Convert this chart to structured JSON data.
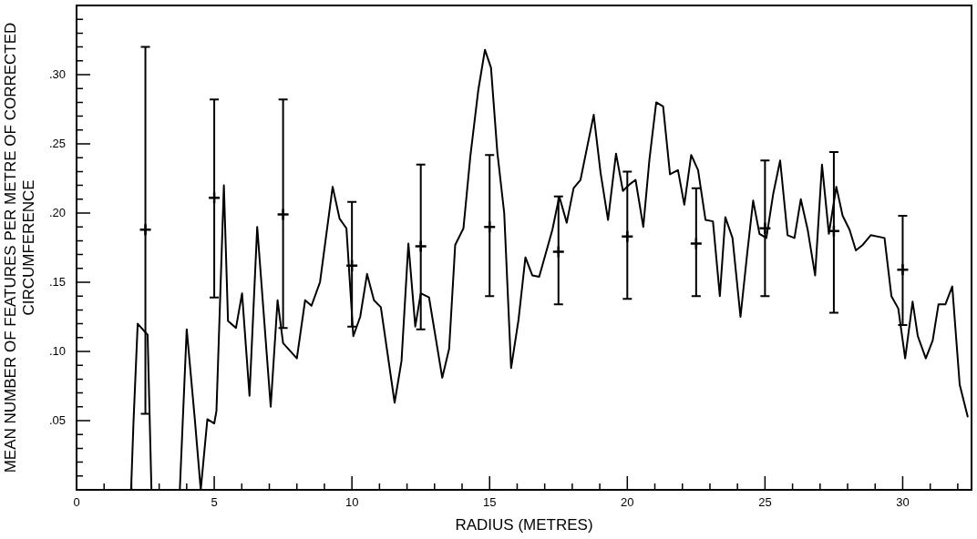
{
  "chart_data": {
    "type": "line",
    "xlabel": "RADIUS (METRES)",
    "ylabel": "MEAN NUMBER OF FEATURES PER METRE OF CORRECTED CIRCUMFERENCE",
    "xlim": [
      0,
      32.5
    ],
    "ylim": [
      0,
      0.35
    ],
    "xticks": [
      0,
      {
        "value": 1,
        "label": null
      },
      {
        "value": 2,
        "label": null
      },
      {
        "value": 3,
        "label": null
      },
      {
        "value": 4,
        "label": null
      },
      5,
      {
        "value": 6,
        "label": null
      },
      {
        "value": 7,
        "label": null
      },
      {
        "value": 8,
        "label": null
      },
      {
        "value": 9,
        "label": null
      },
      10,
      {
        "value": 11,
        "label": null
      },
      {
        "value": 12,
        "label": null
      },
      {
        "value": 13,
        "label": null
      },
      {
        "value": 14,
        "label": null
      },
      15,
      {
        "value": 16,
        "label": null
      },
      {
        "value": 17,
        "label": null
      },
      {
        "value": 18,
        "label": null
      },
      {
        "value": 19,
        "label": null
      },
      20,
      {
        "value": 21,
        "label": null
      },
      {
        "value": 22,
        "label": null
      },
      {
        "value": 23,
        "label": null
      },
      {
        "value": 24,
        "label": null
      },
      25,
      {
        "value": 26,
        "label": null
      },
      {
        "value": 27,
        "label": null
      },
      {
        "value": 28,
        "label": null
      },
      {
        "value": 29,
        "label": null
      },
      30,
      {
        "value": 31,
        "label": null
      },
      {
        "value": 32,
        "label": null
      }
    ],
    "yticks": [
      {
        "value": 0.01,
        "label": null
      },
      {
        "value": 0.02,
        "label": null
      },
      {
        "value": 0.03,
        "label": null
      },
      {
        "value": 0.04,
        "label": null
      },
      {
        "value": 0.05,
        "label": ".05"
      },
      {
        "value": 0.06,
        "label": null
      },
      {
        "value": 0.07,
        "label": null
      },
      {
        "value": 0.08,
        "label": null
      },
      {
        "value": 0.09,
        "label": null
      },
      {
        "value": 0.1,
        "label": ".10"
      },
      {
        "value": 0.11,
        "label": null
      },
      {
        "value": 0.12,
        "label": null
      },
      {
        "value": 0.13,
        "label": null
      },
      {
        "value": 0.14,
        "label": null
      },
      {
        "value": 0.15,
        "label": ".15"
      },
      {
        "value": 0.16,
        "label": null
      },
      {
        "value": 0.17,
        "label": null
      },
      {
        "value": 0.18,
        "label": null
      },
      {
        "value": 0.19,
        "label": null
      },
      {
        "value": 0.2,
        "label": ".20"
      },
      {
        "value": 0.21,
        "label": null
      },
      {
        "value": 0.22,
        "label": null
      },
      {
        "value": 0.23,
        "label": null
      },
      {
        "value": 0.24,
        "label": null
      },
      {
        "value": 0.25,
        "label": ".25"
      },
      {
        "value": 0.26,
        "label": null
      },
      {
        "value": 0.27,
        "label": null
      },
      {
        "value": 0.28,
        "label": null
      },
      {
        "value": 0.29,
        "label": null
      },
      {
        "value": 0.3,
        "label": ".30"
      },
      {
        "value": 0.31,
        "label": null
      },
      {
        "value": 0.32,
        "label": null
      },
      {
        "value": 0.33,
        "label": null
      },
      {
        "value": 0.34,
        "label": null
      }
    ],
    "grid": false,
    "legend": false,
    "series": [
      {
        "type": "line",
        "color": "#000000",
        "marker": "none",
        "x": [
          0,
          1.98,
          2.07,
          2.22,
          2.58,
          2.72,
          3.75,
          4.0,
          4.29,
          4.51,
          4.75,
          5.0,
          5.08,
          5.35,
          5.5,
          5.79,
          6.01,
          6.28,
          6.56,
          7.05,
          7.3,
          7.5,
          8.0,
          8.3,
          8.53,
          8.84,
          9.3,
          9.55,
          9.8,
          10.05,
          10.3,
          10.55,
          10.8,
          11.05,
          11.55,
          11.8,
          12.05,
          12.3,
          12.5,
          12.8,
          13.28,
          13.53,
          13.75,
          14.05,
          14.3,
          14.59,
          14.83,
          15.05,
          15.28,
          15.53,
          15.78,
          16.05,
          16.3,
          16.55,
          16.8,
          17.28,
          17.53,
          17.8,
          18.05,
          18.3,
          18.78,
          19.03,
          19.3,
          19.59,
          19.84,
          20.1,
          20.3,
          20.58,
          20.8,
          21.05,
          21.3,
          21.55,
          21.84,
          22.07,
          22.32,
          22.57,
          22.84,
          23.11,
          23.36,
          23.56,
          23.82,
          24.11,
          24.36,
          24.57,
          24.8,
          25.05,
          25.3,
          25.55,
          25.82,
          26.07,
          26.3,
          26.55,
          26.82,
          27.07,
          27.32,
          27.59,
          27.82,
          28.07,
          28.3,
          28.55,
          28.84,
          29.34,
          29.59,
          29.84,
          30.09,
          30.36,
          30.55,
          30.84,
          31.09,
          31.3,
          31.55,
          31.8,
          32.07,
          32.36
        ],
        "values": [
          0,
          0,
          0.05,
          0.12,
          0.112,
          0,
          0,
          0.116,
          0.052,
          0,
          0.051,
          0.048,
          0.057,
          0.22,
          0.122,
          0.117,
          0.142,
          0.068,
          0.19,
          0.06,
          0.137,
          0.106,
          0.095,
          0.137,
          0.133,
          0.15,
          0.219,
          0.196,
          0.189,
          0.111,
          0.125,
          0.156,
          0.137,
          0.132,
          0.063,
          0.093,
          0.178,
          0.118,
          0.142,
          0.139,
          0.081,
          0.102,
          0.177,
          0.189,
          0.241,
          0.289,
          0.318,
          0.305,
          0.244,
          0.2,
          0.088,
          0.123,
          0.168,
          0.155,
          0.154,
          0.188,
          0.212,
          0.193,
          0.218,
          0.224,
          0.271,
          0.229,
          0.195,
          0.243,
          0.216,
          0.221,
          0.224,
          0.19,
          0.238,
          0.28,
          0.277,
          0.228,
          0.231,
          0.206,
          0.242,
          0.231,
          0.195,
          0.194,
          0.14,
          0.197,
          0.182,
          0.125,
          0.172,
          0.209,
          0.185,
          0.182,
          0.214,
          0.238,
          0.184,
          0.182,
          0.21,
          0.188,
          0.155,
          0.235,
          0.185,
          0.219,
          0.198,
          0.188,
          0.173,
          0.177,
          0.184,
          0.182,
          0.14,
          0.131,
          0.095,
          0.136,
          0.111,
          0.095,
          0.108,
          0.134,
          0.134,
          0.147,
          0.076,
          0.053
        ]
      },
      {
        "type": "scatter",
        "color": "#000000",
        "marker": "cross",
        "x": [
          2.5,
          5,
          7.5,
          10,
          12.5,
          15,
          17.5,
          20,
          22.5,
          25,
          27.5,
          30
        ],
        "values": [
          0.188,
          0.211,
          0.199,
          0.162,
          0.176,
          0.19,
          0.172,
          0.183,
          0.178,
          0.189,
          0.187,
          0.159
        ],
        "errors": [
          [
            0.055,
            0.32
          ],
          [
            0.139,
            0.282
          ],
          [
            0.117,
            0.282
          ],
          [
            0.118,
            0.208
          ],
          [
            0.116,
            0.235
          ],
          [
            0.14,
            0.242
          ],
          [
            0.134,
            0.212
          ],
          [
            0.138,
            0.23
          ],
          [
            0.14,
            0.218
          ],
          [
            0.14,
            0.238
          ],
          [
            0.128,
            0.244
          ],
          [
            0.119,
            0.198
          ]
        ]
      }
    ]
  }
}
